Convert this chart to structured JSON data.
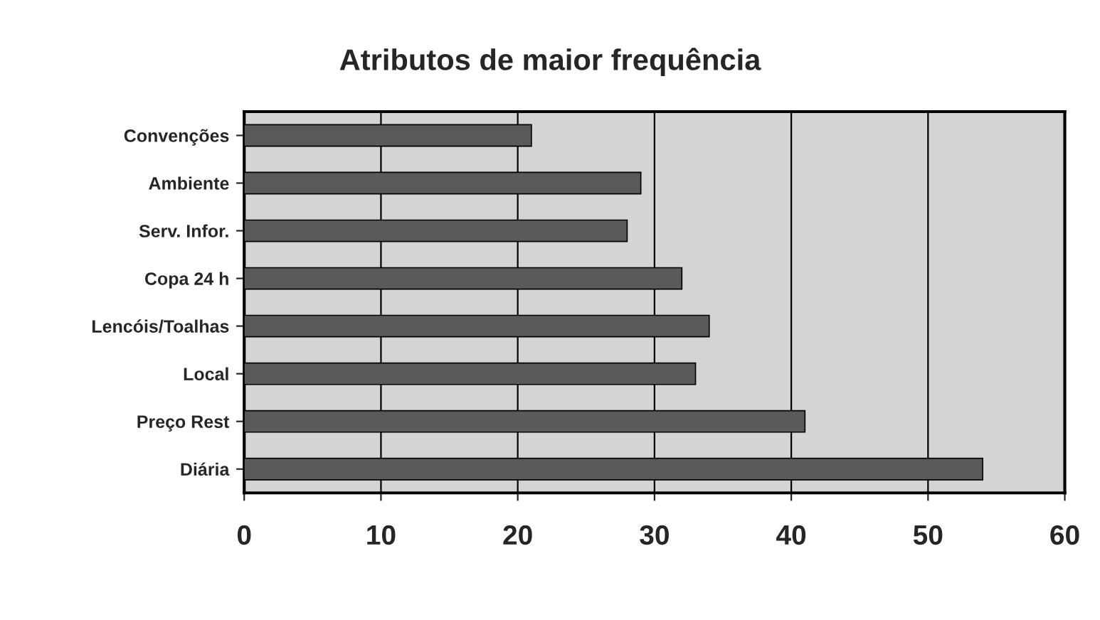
{
  "chart_data": {
    "type": "bar",
    "orientation": "horizontal",
    "title": "Atributos de maior frequência",
    "categories": [
      "Convenções",
      "Ambiente",
      "Serv. Infor.",
      "Copa 24 h",
      "Lencóis/Toalhas",
      "Local",
      "Preço Rest",
      "Diária"
    ],
    "values": [
      21,
      29,
      28,
      32,
      34,
      33,
      41,
      54
    ],
    "color": "#5a5a5a",
    "xlim": [
      0,
      60
    ],
    "xticks": [
      0,
      10,
      20,
      30,
      40,
      50,
      60
    ],
    "grid": "x"
  }
}
